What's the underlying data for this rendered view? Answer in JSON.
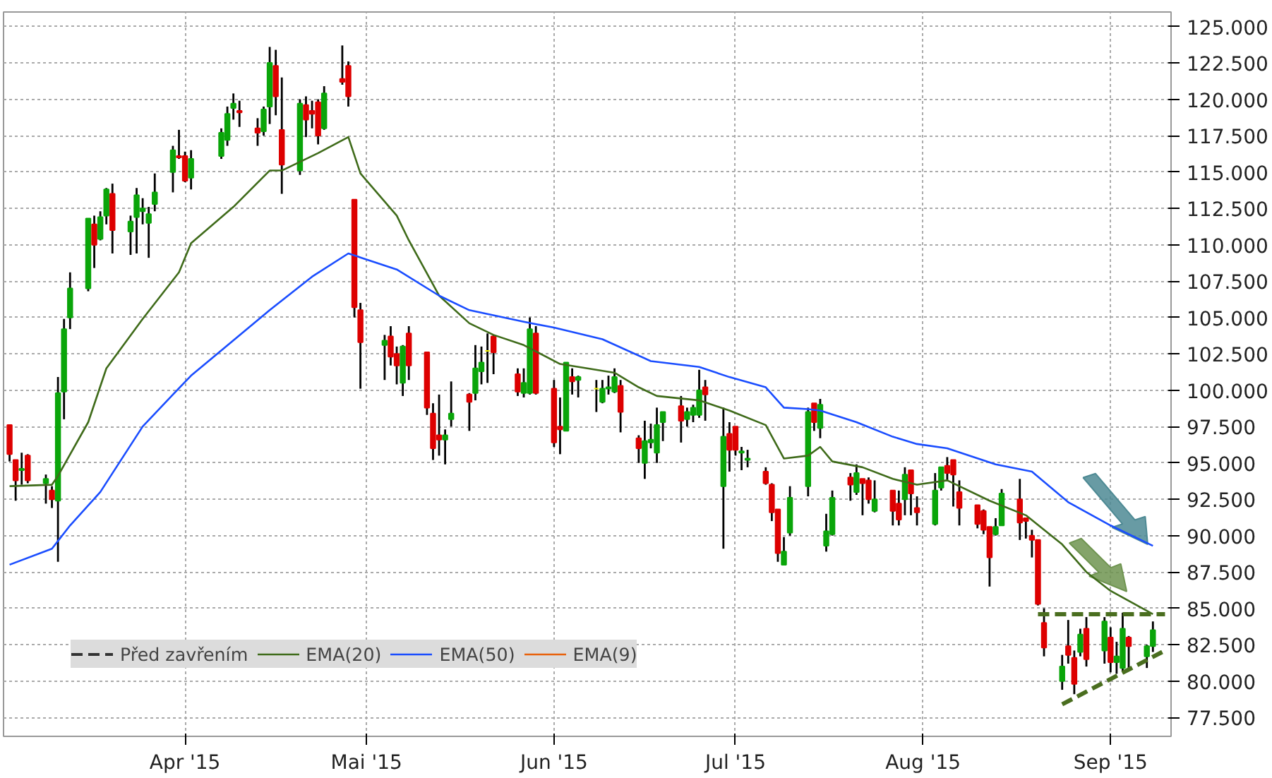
{
  "chart_data": {
    "type": "candlestick",
    "x": [
      "2015-03-03",
      "2015-03-04",
      "2015-03-05",
      "2015-03-06",
      "2015-03-09",
      "2015-03-10",
      "2015-03-11",
      "2015-03-12",
      "2015-03-13",
      "2015-03-16",
      "2015-03-17",
      "2015-03-18",
      "2015-03-19",
      "2015-03-20",
      "2015-03-23",
      "2015-03-24",
      "2015-03-25",
      "2015-03-26",
      "2015-03-27",
      "2015-03-30",
      "2015-03-31",
      "2015-04-01",
      "2015-04-02",
      "2015-04-07",
      "2015-04-08",
      "2015-04-09",
      "2015-04-10",
      "2015-04-13",
      "2015-04-14",
      "2015-04-15",
      "2015-04-16",
      "2015-04-17",
      "2015-04-20",
      "2015-04-21",
      "2015-04-22",
      "2015-04-23",
      "2015-04-24",
      "2015-04-27",
      "2015-04-28",
      "2015-04-29",
      "2015-04-30",
      "2015-05-04",
      "2015-05-05",
      "2015-05-06",
      "2015-05-07",
      "2015-05-08",
      "2015-05-11",
      "2015-05-12",
      "2015-05-13",
      "2015-05-14",
      "2015-05-15",
      "2015-05-18",
      "2015-05-19",
      "2015-05-20",
      "2015-05-21",
      "2015-05-22",
      "2015-05-26",
      "2015-05-27",
      "2015-05-28",
      "2015-05-29",
      "2015-06-01",
      "2015-06-02",
      "2015-06-03",
      "2015-06-04",
      "2015-06-05",
      "2015-06-08",
      "2015-06-09",
      "2015-06-10",
      "2015-06-11",
      "2015-06-12",
      "2015-06-15",
      "2015-06-16",
      "2015-06-17",
      "2015-06-18",
      "2015-06-19",
      "2015-06-22",
      "2015-06-23",
      "2015-06-24",
      "2015-06-25",
      "2015-06-26",
      "2015-06-29",
      "2015-06-30",
      "2015-07-01",
      "2015-07-02",
      "2015-07-03",
      "2015-07-06",
      "2015-07-07",
      "2015-07-08",
      "2015-07-09",
      "2015-07-10",
      "2015-07-13",
      "2015-07-14",
      "2015-07-15",
      "2015-07-16",
      "2015-07-17",
      "2015-07-20",
      "2015-07-21",
      "2015-07-22",
      "2015-07-23",
      "2015-07-24",
      "2015-07-27",
      "2015-07-28",
      "2015-07-29",
      "2015-07-30",
      "2015-07-31",
      "2015-08-03",
      "2015-08-04",
      "2015-08-05",
      "2015-08-06",
      "2015-08-07",
      "2015-08-10",
      "2015-08-11",
      "2015-08-12",
      "2015-08-13",
      "2015-08-14",
      "2015-08-17",
      "2015-08-18",
      "2015-08-19",
      "2015-08-20",
      "2015-08-21",
      "2015-08-24",
      "2015-08-25",
      "2015-08-26",
      "2015-08-27",
      "2015-08-28",
      "2015-08-31",
      "2015-09-01",
      "2015-09-02",
      "2015-09-03",
      "2015-09-04",
      "2015-09-07",
      "2015-09-08"
    ],
    "ohlc": [
      [
        97.6,
        97.6,
        95.1,
        95.6
      ],
      [
        95.2,
        95.2,
        92.4,
        93.8
      ],
      [
        94.5,
        95.7,
        93.5,
        94.6
      ],
      [
        95.5,
        95.6,
        93.6,
        93.8
      ],
      [
        93.6,
        94.2,
        92.2,
        93.9
      ],
      [
        93.1,
        93.4,
        91.9,
        92.5
      ],
      [
        92.4,
        100.9,
        88.2,
        99.8
      ],
      [
        99.9,
        104.9,
        98.0,
        104.2
      ],
      [
        105.0,
        108.1,
        104.2,
        107.0
      ],
      [
        107.0,
        111.8,
        106.8,
        111.8
      ],
      [
        111.4,
        112.0,
        108.4,
        110.0
      ],
      [
        110.4,
        112.3,
        110.3,
        111.9
      ],
      [
        112.0,
        113.9,
        111.4,
        113.8
      ],
      [
        113.5,
        114.2,
        109.4,
        111.0
      ],
      [
        110.9,
        112.0,
        109.3,
        111.6
      ],
      [
        111.9,
        113.9,
        109.4,
        113.4
      ],
      [
        112.3,
        113.2,
        111.4,
        112.5
      ],
      [
        111.5,
        112.6,
        109.1,
        112.1
      ],
      [
        112.8,
        114.9,
        112.3,
        113.6
      ],
      [
        115.0,
        116.8,
        113.6,
        116.5
      ],
      [
        116.1,
        117.9,
        115.9,
        116.0
      ],
      [
        116.1,
        116.4,
        114.3,
        114.4
      ],
      [
        114.6,
        116.5,
        113.8,
        115.9
      ],
      [
        116.1,
        118.0,
        115.9,
        117.7
      ],
      [
        117.2,
        119.5,
        116.8,
        119.0
      ],
      [
        119.4,
        120.4,
        118.6,
        119.7
      ],
      [
        119.2,
        119.9,
        118.1,
        119.1
      ],
      [
        118.0,
        118.7,
        116.8,
        117.7
      ],
      [
        117.8,
        119.5,
        117.5,
        119.3
      ],
      [
        119.5,
        123.6,
        118.3,
        122.5
      ],
      [
        122.3,
        123.4,
        118.9,
        120.2
      ],
      [
        117.9,
        121.5,
        113.5,
        115.5
      ],
      [
        115.1,
        120.0,
        114.8,
        119.7
      ],
      [
        119.6,
        120.2,
        117.4,
        118.6
      ],
      [
        119.2,
        119.9,
        118.0,
        119.0
      ],
      [
        119.8,
        120.0,
        116.9,
        117.5
      ],
      [
        118.0,
        120.9,
        117.9,
        120.4
      ],
      [
        121.4,
        123.7,
        121.0,
        121.2
      ],
      [
        122.3,
        122.6,
        119.5,
        120.2
      ],
      [
        113.1,
        113.1,
        105.0,
        105.7
      ],
      [
        105.5,
        106.0,
        100.1,
        103.3
      ],
      [
        103.1,
        103.8,
        100.7,
        103.4
      ],
      [
        103.7,
        104.4,
        101.7,
        102.3
      ],
      [
        102.5,
        103.0,
        100.4,
        101.7
      ],
      [
        100.5,
        103.1,
        99.6,
        103.0
      ],
      [
        103.9,
        104.4,
        100.7,
        101.7
      ],
      [
        102.6,
        102.6,
        98.3,
        98.8
      ],
      [
        98.4,
        99.1,
        95.2,
        96.0
      ],
      [
        96.9,
        99.7,
        95.5,
        96.6
      ],
      [
        96.6,
        97.3,
        94.9,
        96.9
      ],
      [
        98.0,
        100.6,
        97.5,
        98.4
      ],
      [
        99.7,
        99.8,
        97.2,
        99.2
      ],
      [
        99.8,
        103.1,
        99.3,
        101.5
      ],
      [
        101.3,
        103.0,
        100.4,
        101.9
      ],
      [
        102.7,
        103.9,
        100.5,
        102.7
      ],
      [
        103.7,
        103.8,
        101.1,
        102.6
      ],
      [
        101.1,
        101.5,
        99.6,
        99.9
      ],
      [
        99.8,
        101.5,
        99.5,
        100.5
      ],
      [
        99.8,
        105.0,
        99.7,
        104.2
      ],
      [
        103.9,
        104.4,
        99.7,
        99.8
      ],
      [
        100.1,
        100.7,
        96.1,
        96.4
      ],
      [
        97.5,
        99.5,
        95.6,
        97.3
      ],
      [
        97.2,
        101.9,
        97.2,
        101.9
      ],
      [
        100.9,
        101.5,
        99.7,
        100.6
      ],
      [
        100.7,
        101.0,
        99.5,
        100.9
      ],
      [
        100.1,
        100.7,
        98.5,
        100.1
      ],
      [
        99.2,
        100.7,
        99.1,
        100.1
      ],
      [
        100.1,
        101.0,
        99.7,
        100.2
      ],
      [
        99.9,
        101.5,
        99.8,
        100.9
      ],
      [
        100.3,
        100.7,
        97.1,
        98.5
      ],
      [
        96.7,
        96.9,
        95.0,
        96.0
      ],
      [
        95.0,
        97.9,
        93.9,
        96.5
      ],
      [
        96.4,
        97.7,
        96.0,
        96.6
      ],
      [
        95.7,
        98.8,
        95.0,
        97.6
      ],
      [
        97.8,
        98.5,
        96.5,
        98.5
      ],
      [
        98.9,
        99.6,
        96.4,
        97.9
      ],
      [
        98.0,
        98.8,
        97.5,
        98.5
      ],
      [
        98.3,
        99.0,
        97.8,
        98.8
      ],
      [
        98.3,
        101.4,
        98.1,
        100.0
      ],
      [
        100.2,
        100.7,
        97.9,
        99.7
      ],
      [
        93.4,
        98.8,
        89.1,
        96.8
      ],
      [
        97.0,
        97.8,
        94.4,
        95.9
      ],
      [
        97.5,
        97.5,
        95.5,
        95.9
      ],
      [
        95.7,
        96.1,
        94.5,
        95.8
      ],
      [
        95.2,
        95.9,
        94.7,
        95.3
      ],
      [
        94.4,
        94.7,
        93.5,
        93.6
      ],
      [
        93.5,
        93.6,
        91.0,
        91.6
      ],
      [
        91.8,
        91.8,
        88.2,
        88.8
      ],
      [
        88.0,
        89.9,
        88.0,
        88.9
      ],
      [
        90.2,
        93.4,
        90.0,
        92.6
      ],
      [
        93.4,
        98.8,
        92.7,
        98.5
      ],
      [
        99.1,
        99.1,
        97.2,
        97.8
      ],
      [
        97.4,
        99.4,
        96.7,
        99.0
      ],
      [
        89.3,
        91.5,
        88.9,
        90.3
      ],
      [
        90.1,
        93.1,
        90.0,
        92.6
      ],
      [
        94.0,
        94.3,
        92.4,
        93.5
      ],
      [
        93.0,
        94.9,
        92.8,
        94.3
      ],
      [
        93.9,
        93.9,
        91.4,
        93.6
      ],
      [
        93.8,
        94.0,
        92.2,
        92.5
      ],
      [
        91.7,
        93.8,
        91.6,
        92.5
      ],
      [
        93.1,
        93.1,
        90.7,
        91.7
      ],
      [
        92.2,
        93.1,
        90.7,
        91.1
      ],
      [
        92.5,
        94.7,
        91.4,
        94.2
      ],
      [
        94.5,
        94.5,
        91.4,
        92.9
      ],
      [
        91.9,
        92.7,
        90.7,
        91.6
      ],
      [
        90.8,
        94.3,
        90.7,
        93.1
      ],
      [
        93.3,
        94.7,
        93.1,
        94.7
      ],
      [
        94.8,
        95.4,
        93.8,
        94.3
      ],
      [
        95.2,
        95.2,
        92.0,
        94.2
      ],
      [
        93.0,
        93.8,
        90.7,
        91.9
      ],
      [
        92.1,
        92.1,
        90.5,
        90.8
      ],
      [
        91.7,
        91.8,
        90.1,
        90.4
      ],
      [
        90.6,
        90.6,
        86.5,
        88.5
      ],
      [
        90.1,
        91.2,
        90.0,
        90.6
      ],
      [
        90.7,
        93.2,
        90.7,
        92.9
      ],
      [
        92.5,
        93.9,
        89.7,
        90.9
      ],
      [
        91.2,
        91.2,
        89.8,
        91.0
      ],
      [
        90.0,
        90.4,
        88.5,
        89.7
      ],
      [
        89.7,
        89.7,
        85.2,
        85.3
      ],
      [
        84.0,
        85.0,
        81.7,
        82.3
      ],
      [
        80.0,
        81.8,
        79.4,
        81.0
      ],
      [
        82.4,
        84.2,
        81.2,
        81.8
      ],
      [
        81.6,
        82.1,
        79.1,
        79.8
      ],
      [
        82.0,
        83.6,
        81.7,
        83.2
      ],
      [
        83.6,
        84.4,
        81.0,
        81.5
      ],
      [
        82.1,
        84.4,
        81.2,
        84.1
      ],
      [
        83.0,
        83.7,
        80.6,
        81.3
      ],
      [
        81.3,
        82.7,
        80.5,
        81.7
      ],
      [
        80.9,
        84.7,
        80.7,
        83.6
      ],
      [
        83.0,
        83.1,
        80.9,
        82.4
      ],
      [
        81.7,
        82.5,
        80.9,
        82.4
      ],
      [
        82.4,
        84.1,
        82.0,
        83.5
      ]
    ],
    "colors": [
      "#dd0000",
      "#dd0000",
      "#0aa50a",
      "#dd0000",
      "#0aa50a",
      "#dd0000",
      "#0aa50a",
      "#0aa50a",
      "#0aa50a",
      "#0aa50a",
      "#dd0000",
      "#0aa50a",
      "#0aa50a",
      "#dd0000",
      "#0aa50a",
      "#0aa50a",
      "#0aa50a",
      "#0aa50a",
      "#0aa50a",
      "#0aa50a",
      "#dd0000",
      "#dd0000",
      "#0aa50a",
      "#0aa50a",
      "#0aa50a",
      "#0aa50a",
      "#dd0000",
      "#dd0000",
      "#0aa50a",
      "#0aa50a",
      "#dd0000",
      "#dd0000",
      "#0aa50a",
      "#dd0000",
      "#dd0000",
      "#dd0000",
      "#0aa50a",
      "#dd0000",
      "#dd0000",
      "#dd0000",
      "#dd0000",
      "#0aa50a",
      "#dd0000",
      "#dd0000",
      "#0aa50a",
      "#dd0000",
      "#dd0000",
      "#dd0000",
      "#dd0000",
      "#0aa50a",
      "#0aa50a",
      "#dd0000",
      "#0aa50a",
      "#0aa50a",
      "#f0f000",
      "#dd0000",
      "#dd0000",
      "#0aa50a",
      "#0aa50a",
      "#dd0000",
      "#dd0000",
      "#dd0000",
      "#0aa50a",
      "#dd0000",
      "#0aa50a",
      "#f0f000",
      "#0aa50a",
      "#0aa50a",
      "#0aa50a",
      "#dd0000",
      "#dd0000",
      "#0aa50a",
      "#0aa50a",
      "#0aa50a",
      "#0aa50a",
      "#dd0000",
      "#0aa50a",
      "#0aa50a",
      "#0aa50a",
      "#dd0000",
      "#0aa50a",
      "#dd0000",
      "#dd0000",
      "#0aa50a",
      "#0aa50a",
      "#dd0000",
      "#dd0000",
      "#dd0000",
      "#0aa50a",
      "#0aa50a",
      "#0aa50a",
      "#dd0000",
      "#0aa50a",
      "#0aa50a",
      "#0aa50a",
      "#dd0000",
      "#0aa50a",
      "#dd0000",
      "#dd0000",
      "#0aa50a",
      "#dd0000",
      "#dd0000",
      "#0aa50a",
      "#dd0000",
      "#dd0000",
      "#0aa50a",
      "#0aa50a",
      "#dd0000",
      "#dd0000",
      "#dd0000",
      "#dd0000",
      "#dd0000",
      "#dd0000",
      "#0aa50a",
      "#0aa50a",
      "#dd0000",
      "#dd0000",
      "#dd0000",
      "#dd0000",
      "#dd0000",
      "#0aa50a",
      "#dd0000",
      "#dd0000",
      "#0aa50a",
      "#dd0000",
      "#0aa50a",
      "#dd0000",
      "#0aa50a",
      "#0aa50a",
      "#dd0000",
      "#0aa50a",
      "#0aa50a"
    ],
    "series": [
      {
        "name": "Před zavřením",
        "type": "line",
        "color": "#333333",
        "line_style": "dashed",
        "values": [
          null,
          null,
          null,
          null,
          null,
          null,
          null,
          null,
          null,
          null,
          null,
          null,
          null,
          null,
          null,
          null,
          null,
          null,
          null,
          null,
          null,
          null,
          null,
          null,
          null,
          null,
          null,
          null,
          null,
          null,
          null,
          null,
          null,
          null,
          null,
          null,
          null,
          null,
          null,
          null,
          null,
          null,
          null,
          null,
          null,
          null,
          null,
          null,
          null,
          null,
          null,
          null,
          null,
          null,
          null,
          null,
          null,
          null,
          null,
          null,
          null,
          null,
          null,
          null,
          null,
          null,
          null,
          null,
          null,
          null,
          null,
          null,
          null,
          null,
          null,
          null,
          null,
          null,
          null,
          null,
          null,
          null,
          null,
          null,
          null,
          null,
          null,
          null,
          null,
          null,
          null,
          null,
          null,
          null,
          null,
          null,
          null,
          null,
          null,
          null,
          null,
          null,
          null,
          null,
          null,
          null,
          null,
          null,
          null,
          null,
          null,
          null,
          null,
          null,
          null,
          null,
          null,
          null,
          null,
          null,
          null,
          null,
          null,
          null,
          null,
          null,
          null,
          null,
          null,
          null,
          null,
          null
        ]
      },
      {
        "name": "EMA(20)",
        "type": "line",
        "color": "#3f6b1a",
        "x": [
          "2015-03-03",
          "2015-03-10",
          "2015-03-11",
          "2015-03-16",
          "2015-03-19",
          "2015-03-25",
          "2015-03-31",
          "2015-04-02",
          "2015-04-09",
          "2015-04-15",
          "2015-04-17",
          "2015-04-21",
          "2015-04-23",
          "2015-04-28",
          "2015-04-30",
          "2015-05-06",
          "2015-05-08",
          "2015-05-13",
          "2015-05-18",
          "2015-05-22",
          "2015-05-27",
          "2015-06-02",
          "2015-06-11",
          "2015-06-15",
          "2015-06-18",
          "2015-06-25",
          "2015-06-30",
          "2015-07-06",
          "2015-07-09",
          "2015-07-13",
          "2015-07-15",
          "2015-07-17",
          "2015-07-22",
          "2015-07-27",
          "2015-07-31",
          "2015-08-05",
          "2015-08-12",
          "2015-08-18",
          "2015-08-24",
          "2015-08-28",
          "2015-09-01",
          "2015-09-08"
        ],
        "values": [
          93.4,
          93.5,
          94.1,
          97.8,
          101.5,
          104.9,
          108.1,
          110.1,
          112.6,
          115.1,
          115.1,
          115.9,
          116.3,
          117.4,
          114.9,
          112.0,
          110.3,
          106.5,
          104.6,
          103.8,
          103.1,
          101.8,
          101.2,
          100.2,
          99.6,
          99.3,
          98.6,
          97.6,
          95.3,
          95.5,
          96.1,
          95.1,
          94.7,
          93.9,
          93.5,
          93.8,
          92.4,
          91.4,
          89.4,
          87.5,
          86.2,
          84.6
        ]
      },
      {
        "name": "EMA(50)",
        "type": "line",
        "color": "#1a4dff",
        "x": [
          "2015-03-03",
          "2015-03-10",
          "2015-03-13",
          "2015-03-18",
          "2015-03-25",
          "2015-03-30",
          "2015-04-02",
          "2015-04-15",
          "2015-04-22",
          "2015-04-28",
          "2015-05-06",
          "2015-05-13",
          "2015-05-18",
          "2015-05-27",
          "2015-06-01",
          "2015-06-09",
          "2015-06-17",
          "2015-06-25",
          "2015-06-30",
          "2015-07-06",
          "2015-07-09",
          "2015-07-13",
          "2015-07-15",
          "2015-07-21",
          "2015-07-27",
          "2015-07-31",
          "2015-08-05",
          "2015-08-13",
          "2015-08-19",
          "2015-08-25",
          "2015-09-01",
          "2015-09-08"
        ],
        "values": [
          88.0,
          89.1,
          90.7,
          93.0,
          97.5,
          99.7,
          101.0,
          105.5,
          107.8,
          109.4,
          108.3,
          106.5,
          105.5,
          104.7,
          104.3,
          103.5,
          102.0,
          101.6,
          100.9,
          100.2,
          98.8,
          98.7,
          98.6,
          97.8,
          96.8,
          96.3,
          96.0,
          94.9,
          94.4,
          92.3,
          90.7,
          89.3
        ]
      },
      {
        "name": "EMA(9)",
        "type": "line",
        "color": "#e8620c",
        "values": [
          null,
          null,
          null,
          null,
          null,
          null,
          null,
          null,
          null,
          null,
          null,
          null,
          null,
          null,
          null,
          null,
          null,
          null,
          null,
          null,
          null,
          null,
          null,
          null,
          null,
          null,
          null,
          null,
          null,
          null,
          null,
          null,
          null,
          null,
          null,
          null,
          null,
          null,
          null,
          null,
          null,
          null,
          null,
          null,
          null,
          null,
          null,
          null,
          null,
          null,
          null,
          null,
          null,
          null,
          null,
          null,
          null,
          null,
          null,
          null,
          null,
          null,
          null,
          null,
          null,
          null,
          null,
          null,
          null,
          null,
          null,
          null,
          null,
          null,
          null,
          null,
          null,
          null,
          null,
          null,
          null,
          null,
          null,
          null,
          null,
          null,
          null,
          null,
          null,
          null,
          null,
          null,
          null,
          null,
          null,
          null,
          null,
          null,
          null,
          null,
          null,
          null,
          null,
          null,
          null,
          null,
          null,
          null,
          null,
          null,
          null,
          null,
          null,
          null,
          null,
          null,
          null,
          null,
          null,
          null,
          null,
          null,
          null,
          null,
          null,
          null,
          null,
          null,
          null,
          null,
          null,
          null
        ]
      },
      {
        "type": "line",
        "color": "#4a6e1f",
        "line_style": "dashed",
        "x": [
          "2015-08-20",
          "2015-09-10"
        ],
        "values": [
          84.6,
          84.6
        ]
      },
      {
        "type": "line",
        "color": "#4a6e1f",
        "line_style": "dashed",
        "x": [
          "2015-08-24",
          "2015-09-10"
        ],
        "values": [
          78.4,
          82.1
        ]
      }
    ],
    "xlim": [
      "2015-03-02",
      "2015-09-11"
    ],
    "xticks": [
      {
        "value": "2015-04-01",
        "label": "Apr '15"
      },
      {
        "value": "2015-05-01",
        "label": "Mai '15"
      },
      {
        "value": "2015-06-01",
        "label": "Jun '15"
      },
      {
        "value": "2015-07-01",
        "label": "Jul '15"
      },
      {
        "value": "2015-08-01",
        "label": "Aug '15"
      },
      {
        "value": "2015-09-01",
        "label": "Sep '15"
      }
    ],
    "ylim": [
      76.2,
      126.0
    ],
    "yticks": [
      {
        "value": 77.5,
        "label": "77.500"
      },
      {
        "value": 80,
        "label": "80.000"
      },
      {
        "value": 82.5,
        "label": "82.500"
      },
      {
        "value": 85,
        "label": "85.000"
      },
      {
        "value": 87.5,
        "label": "87.500"
      },
      {
        "value": 90,
        "label": "90.000"
      },
      {
        "value": 92.5,
        "label": "92.500"
      },
      {
        "value": 95,
        "label": "95.000"
      },
      {
        "value": 97.5,
        "label": "97.500"
      },
      {
        "value": 100,
        "label": "100.000"
      },
      {
        "value": 102.5,
        "label": "102.500"
      },
      {
        "value": 105,
        "label": "105.000"
      },
      {
        "value": 107.5,
        "label": "107.500"
      },
      {
        "value": 110,
        "label": "110.000"
      },
      {
        "value": 112.5,
        "label": "112.500"
      },
      {
        "value": 115,
        "label": "115.000"
      },
      {
        "value": 117.5,
        "label": "117.500"
      },
      {
        "value": 120,
        "label": "120.000"
      },
      {
        "value": 122.5,
        "label": "122.500"
      },
      {
        "value": 125,
        "label": "125.000"
      }
    ],
    "grid": true,
    "legend": "bottom left"
  }
}
